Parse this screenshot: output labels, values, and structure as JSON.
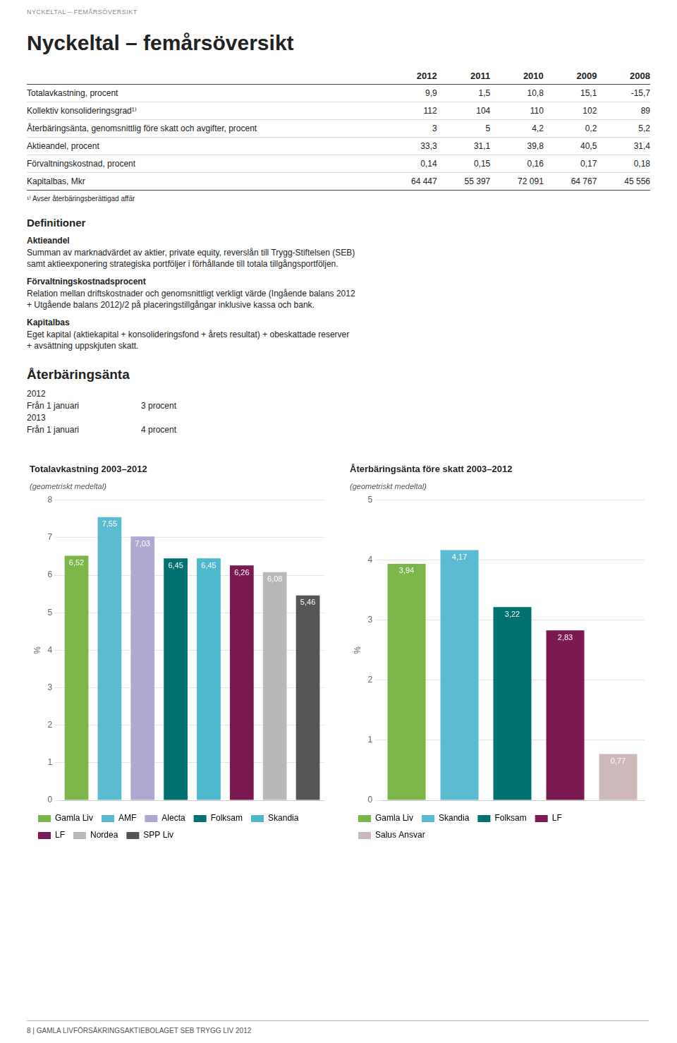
{
  "header": "NYCKELTAL – FEMÅRSÖVERSIKT",
  "title": "Nyckeltal – femårsöversikt",
  "table": {
    "columns": [
      "2012",
      "2011",
      "2010",
      "2009",
      "2008"
    ],
    "rows": [
      {
        "label": "Totalavkastning, procent",
        "values": [
          "9,9",
          "1,5",
          "10,8",
          "15,1",
          "-15,7"
        ]
      },
      {
        "label": "Kollektiv konsolideringsgrad¹⁾",
        "values": [
          "112",
          "104",
          "110",
          "102",
          "89"
        ]
      },
      {
        "label": "Återbäringsänta, genomsnittlig före skatt och avgifter, procent",
        "values": [
          "3",
          "5",
          "4,2",
          "0,2",
          "5,2"
        ]
      },
      {
        "label": "Aktieandel, procent",
        "values": [
          "33,3",
          "31,1",
          "39,8",
          "40,5",
          "31,4"
        ]
      },
      {
        "label": "Förvaltningskostnad, procent",
        "values": [
          "0,14",
          "0,15",
          "0,16",
          "0,17",
          "0,18"
        ]
      },
      {
        "label": "Kapitalbas, Mkr",
        "values": [
          "64 447",
          "55 397",
          "72 091",
          "64 767",
          "45 556"
        ]
      }
    ],
    "footnote": "¹⁾ Avser återbäringsberättigad affär"
  },
  "definitions": {
    "title": "Definitioner",
    "items": [
      {
        "title": "Aktieandel",
        "lines": [
          "Summan av marknadvärdet av aktier, private equity, reverslån till Trygg-Stiftelsen (SEB)",
          "samt aktieexponering strategiska portföljer i förhållande till totala tillgångsportföljen."
        ]
      },
      {
        "title": "Förvaltningskostnadsprocent",
        "lines": [
          "Relation mellan driftskostnader och genomsnittligt verkligt värde (Ingående balans 2012",
          "+ Utgående balans 2012)/2 på placeringstillgångar inklusive kassa och bank."
        ]
      },
      {
        "title": "Kapitalbas",
        "lines": [
          "Eget kapital (aktiekapital + konsolideringsfond + årets resultat) + obeskattade reserver",
          "+ avsättning uppskjuten skatt."
        ]
      }
    ]
  },
  "rate_section": {
    "title": "Återbäringsänta",
    "entries": [
      {
        "heading": "2012",
        "label": "Från 1 januari",
        "rate": "3 procent"
      },
      {
        "heading": "2013",
        "label": "Från 1 januari",
        "rate": "4 procent"
      }
    ]
  },
  "footer": "8  |  GAMLA LIVFÖRSÄKRINGSAKTIEBOLAGET SEB TRYGG LIV 2012",
  "chart_data": [
    {
      "type": "bar",
      "title": "Totalavkastning 2003–2012",
      "subtitle": "(geometriskt medeltal)",
      "y_label": "%",
      "categories": [
        "Gamla Liv",
        "AMF",
        "Alecta",
        "Folksam",
        "Skandia",
        "LF",
        "Nordea",
        "SPP Liv"
      ],
      "values": [
        6.52,
        7.55,
        7.03,
        6.45,
        6.45,
        6.26,
        6.08,
        5.46
      ],
      "value_labels": [
        "6,52",
        "7,55",
        "7,03",
        "6,45",
        "6,45",
        "6,26",
        "6,08",
        "5,46"
      ],
      "colors": [
        "#7ab648",
        "#5bbcd1",
        "#b0a8d0",
        "#007070",
        "#4db8cc",
        "#7a1a50",
        "#b8b8b8",
        "#555555"
      ],
      "ylim": [
        0,
        8
      ],
      "yticks": [
        0,
        1,
        2,
        3,
        4,
        5,
        6,
        7,
        8
      ],
      "grid": true,
      "legend": "bottom",
      "data_labels": true,
      "tick_labels": "y"
    },
    {
      "type": "bar",
      "title": "Återbäringsänta före skatt 2003–2012",
      "subtitle": "(geometriskt medeltal)",
      "y_label": "%",
      "categories": [
        "Gamla Liv",
        "Skandia",
        "Folksam",
        "LF",
        "Salus Ansvar"
      ],
      "values": [
        3.94,
        4.17,
        3.22,
        2.83,
        0.77
      ],
      "value_labels": [
        "3,94",
        "4,17",
        "3,22",
        "2,83",
        "0,77"
      ],
      "colors": [
        "#7ab648",
        "#5bbcd1",
        "#007070",
        "#7a1a50",
        "#ccb8b8"
      ],
      "ylim": [
        0,
        5
      ],
      "yticks": [
        0,
        1,
        2,
        3,
        4,
        5
      ],
      "grid": true,
      "legend": "bottom",
      "data_labels": true,
      "tick_labels": "y"
    }
  ]
}
